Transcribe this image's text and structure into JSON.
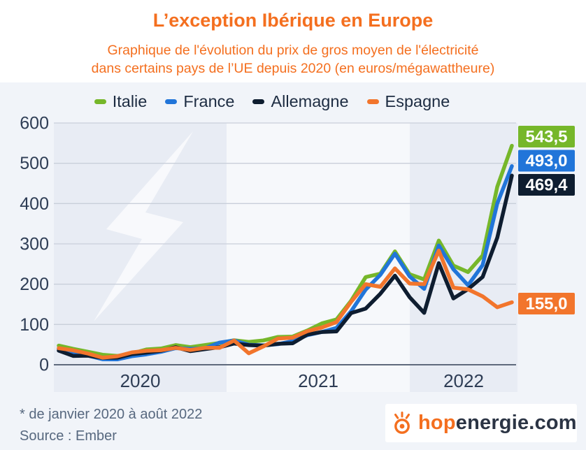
{
  "header": {
    "title": "L’exception Ibérique en Europe",
    "subtitle_line1": "Graphique de l'évolution du prix de gros moyen de l'électricité",
    "subtitle_line2": "dans certains pays de l’UE depuis 2020 (en euros/mégawattheure)"
  },
  "colors": {
    "accent_orange": "#f46f1f",
    "panel_bg": "#f1f4f9",
    "band_dark": "#e8ecf4",
    "band_light": "#f6f8fb",
    "grid_line": "#c9cfda",
    "zero_line": "#5f6a7c",
    "axis_text": "#2e3d55",
    "watermark": "#ffffff"
  },
  "chart_data": {
    "type": "line",
    "title": "Prix de gros moyen de l'électricité (euros/mégawattheure)",
    "unit": "euros/mégawattheure",
    "period_note": "janvier 2020 – août 2022",
    "grid": true,
    "legend_position": "top",
    "ylim": [
      0,
      600
    ],
    "y_ticks": [
      0,
      100,
      200,
      300,
      400,
      500,
      600
    ],
    "x_tick_labels": [
      "2020",
      "2021",
      "2022"
    ],
    "months": [
      "2020-01",
      "2020-02",
      "2020-03",
      "2020-04",
      "2020-05",
      "2020-06",
      "2020-07",
      "2020-08",
      "2020-09",
      "2020-10",
      "2020-11",
      "2020-12",
      "2021-01",
      "2021-02",
      "2021-03",
      "2021-04",
      "2021-05",
      "2021-06",
      "2021-07",
      "2021-08",
      "2021-09",
      "2021-10",
      "2021-11",
      "2021-12",
      "2022-01",
      "2022-02",
      "2022-03",
      "2022-04",
      "2022-05",
      "2022-06",
      "2022-07",
      "2022-08"
    ],
    "series": [
      {
        "name": "Italie",
        "color": "#76b72a",
        "end_label": "543,5",
        "values": [
          47.5,
          39.3,
          32.0,
          24.8,
          21.8,
          28.0,
          38.0,
          40.3,
          48.8,
          43.5,
          48.8,
          54.0,
          60.7,
          56.6,
          60.4,
          69.0,
          69.9,
          84.8,
          102.7,
          112.4,
          158.6,
          217.6,
          225.9,
          281.2,
          224.5,
          211.7,
          308.1,
          246.0,
          230.1,
          271.3,
          441.7,
          543.5
        ]
      },
      {
        "name": "France",
        "color": "#2175d9",
        "end_label": "493,0",
        "values": [
          39.4,
          26.2,
          22.9,
          13.7,
          13.4,
          21.2,
          25.9,
          32.3,
          41.3,
          39.3,
          40.5,
          54.9,
          60.3,
          49.6,
          48.2,
          51.2,
          58.6,
          73.3,
          81.4,
          91.4,
          132.6,
          186.6,
          223.1,
          275.8,
          219.6,
          188.4,
          295.8,
          236.9,
          197.4,
          247.2,
          400.1,
          493.0
        ]
      },
      {
        "name": "Allemagne",
        "color": "#0e1d30",
        "end_label": "469,4",
        "values": [
          35.0,
          21.9,
          22.5,
          17.1,
          17.6,
          26.4,
          30.0,
          34.8,
          43.6,
          33.9,
          38.6,
          43.5,
          52.8,
          48.8,
          47.5,
          52.1,
          53.3,
          74.9,
          81.4,
          82.7,
          128.3,
          139.5,
          176.1,
          221.1,
          167.9,
          128.9,
          252.1,
          164.6,
          187.6,
          218.0,
          315.3,
          469.4
        ]
      },
      {
        "name": "Espagne",
        "color": "#f2752c",
        "end_label": "155,0",
        "values": [
          41.1,
          35.8,
          27.7,
          17.6,
          21.0,
          30.6,
          34.6,
          36.2,
          41.9,
          36.6,
          41.9,
          41.9,
          60.2,
          28.5,
          45.4,
          65.0,
          67.1,
          83.3,
          92.4,
          105.9,
          156.1,
          199.9,
          193.4,
          239.2,
          201.7,
          200.2,
          283.3,
          191.5,
          187.1,
          169.8,
          142.7,
          155.0
        ]
      }
    ]
  },
  "footer": {
    "note": "* de janvier 2020 à août 2022",
    "source": "Source : Ember"
  },
  "logo": {
    "text_orange": "hop",
    "text_dark": "energie.com"
  }
}
